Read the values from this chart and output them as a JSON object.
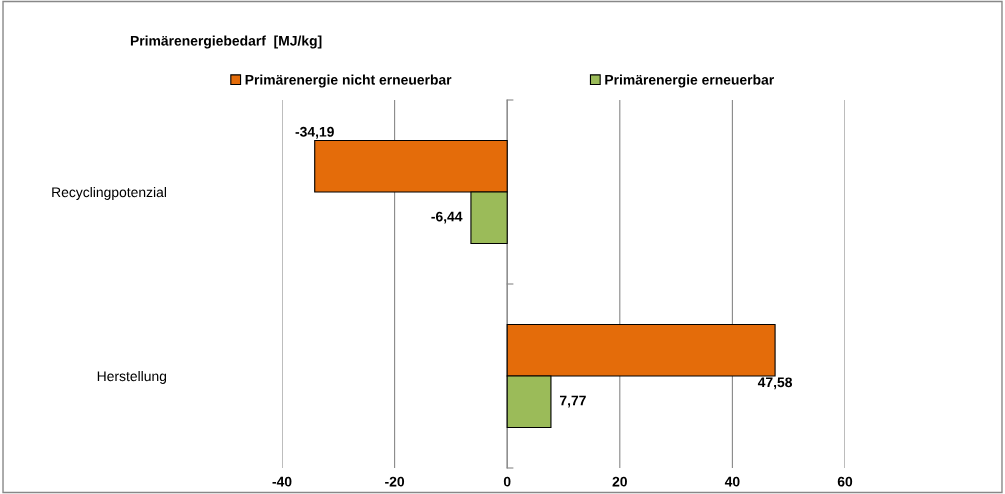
{
  "chart_data": {
    "type": "bar",
    "orientation": "horizontal",
    "title": "Primärenergiebedarf  [MJ/kg]",
    "categories": [
      "Recyclingpotenzial",
      "Herstellung"
    ],
    "series": [
      {
        "name": "Primärenergie nicht erneuerbar",
        "color": "#e46c0a",
        "values": [
          -34.19,
          47.58
        ],
        "value_labels": [
          "-34,19",
          "47,58"
        ]
      },
      {
        "name": "Primärenergie erneuerbar",
        "color": "#9bbb59",
        "values": [
          -6.44,
          7.77
        ],
        "value_labels": [
          "-6,44",
          "7,77"
        ]
      }
    ],
    "xlim": [
      -40,
      60
    ],
    "xticks": [
      -40,
      -20,
      0,
      20,
      40,
      60
    ],
    "grid": "x",
    "legend": "top"
  }
}
